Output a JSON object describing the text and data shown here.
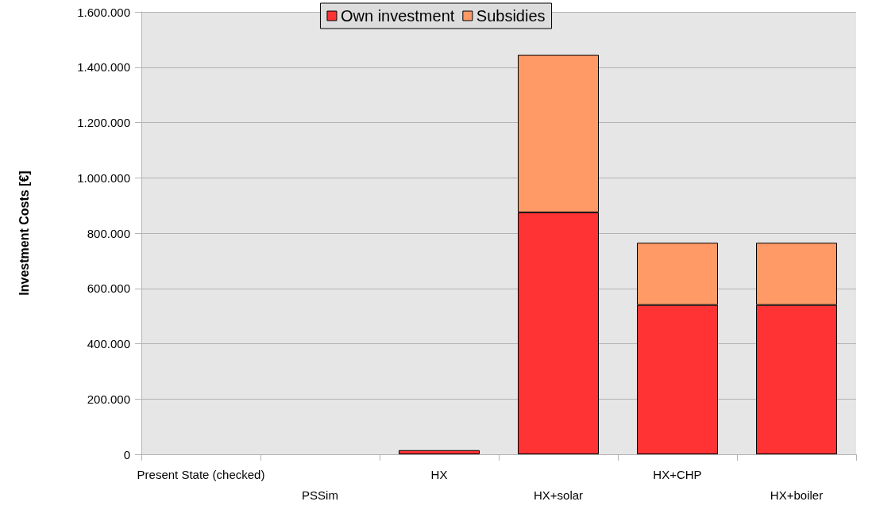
{
  "chart_data": {
    "type": "bar",
    "ylabel": "Investment Costs [€]",
    "categories": [
      "Present State (checked)",
      "PSSim",
      "HX",
      "HX+solar",
      "HX+CHP",
      "HX+boiler"
    ],
    "series": [
      {
        "name": "Own investment",
        "color": "#ff3333",
        "values": [
          0,
          0,
          15000,
          875000,
          540000,
          540000
        ]
      },
      {
        "name": "Subsidies",
        "color": "#ff9966",
        "values": [
          0,
          0,
          0,
          570000,
          225000,
          225000
        ]
      }
    ],
    "stacked": true,
    "ylim": [
      0,
      1600000
    ],
    "yticks": [
      0,
      {
        "value": 200000,
        "label": "200.000"
      },
      {
        "value": 400000,
        "label": "400.000"
      },
      {
        "value": 600000,
        "label": "600.000"
      },
      {
        "value": 800000,
        "label": "800.000"
      },
      {
        "value": 1000000,
        "label": "1.000.000"
      },
      {
        "value": 1200000,
        "label": "1.200.000"
      },
      {
        "value": 1400000,
        "label": "1.400.000"
      },
      {
        "value": 1600000,
        "label": "1.600.000"
      }
    ],
    "grid": "y",
    "legend": "top"
  }
}
